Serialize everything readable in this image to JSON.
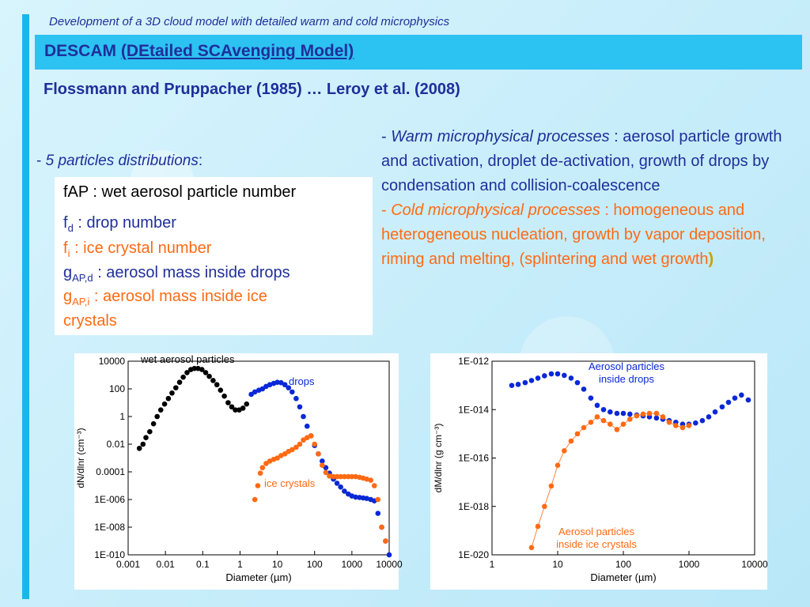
{
  "header": {
    "subtitle": "Development of a 3D cloud model with detailed warm and cold microphysics",
    "title_prefix": "DESCAM ",
    "title_link": "(DEtailed SCAvenging Model)",
    "authors": "Flossmann and Pruppacher (1985) … Leroy et al. (2008)"
  },
  "distributions": {
    "dash": "- ",
    "label": "5  particles distributions",
    "colon": ":",
    "items": [
      {
        "sym": "fAP",
        "sub": "",
        "text": " : wet aerosol particle number",
        "color": "black"
      },
      {
        "sym": "f",
        "sub": "d",
        "text": " : drop number",
        "color": "blue"
      },
      {
        "sym": "f",
        "sub": "i",
        "text": "  : ice crystal number",
        "color": "orange"
      },
      {
        "sym": "g",
        "sub": "AP,d",
        "text": " : aerosol mass inside drops",
        "color": "blue"
      },
      {
        "sym": "g",
        "sub": "AP,i",
        "text": " : aerosol mass inside ice",
        "color": "orange"
      },
      {
        "sym": "",
        "sub": "",
        "text": "crystals",
        "color": "orange"
      }
    ]
  },
  "processes": {
    "warm_dash": "- ",
    "warm_title": "Warm microphysical processes",
    "warm_text": " : aerosol particle growth and activation, droplet de-activation, growth of drops by condensation and collision-coalescence",
    "cold_dash": "- ",
    "cold_title": "Cold microphysical processes",
    "cold_text": " : homogeneous and heterogeneous nucleation, growth by vapor deposition, riming and melting, (splintering and wet growth",
    "cold_close": ")"
  },
  "colors": {
    "blue": "#1f2f9a",
    "orange": "#ff6a13",
    "black": "#000000",
    "accent": "#2cc2f2"
  },
  "chart_data": [
    {
      "type": "scatter",
      "xlabel": "Diameter (µm)",
      "ylabel": "dN/dlnr (cm⁻³)",
      "xscale": "log",
      "yscale": "log",
      "xlim": [
        0.001,
        10000
      ],
      "ylim": [
        1e-10,
        10000
      ],
      "xticks": [
        "0.001",
        "0.01",
        "0.1",
        "1",
        "10",
        "100",
        "1000",
        "10000"
      ],
      "yticks": [
        "10000",
        "100",
        "1",
        "0.01",
        "0.0001",
        "1E-006",
        "1E-008",
        "1E-010"
      ],
      "series": [
        {
          "name": "wet aerosol particles",
          "color": "#000000",
          "x": [
            0.002,
            0.0025,
            0.003,
            0.0038,
            0.0048,
            0.006,
            0.0075,
            0.0095,
            0.012,
            0.015,
            0.019,
            0.024,
            0.03,
            0.038,
            0.048,
            0.06,
            0.075,
            0.095,
            0.12,
            0.15,
            0.19,
            0.24,
            0.3,
            0.38,
            0.48,
            0.6,
            0.75,
            0.95,
            1.2,
            1.5
          ],
          "y": [
            0.005,
            0.01,
            0.03,
            0.08,
            0.3,
            1,
            3,
            8,
            20,
            50,
            120,
            300,
            700,
            1500,
            2500,
            3000,
            3000,
            2500,
            1500,
            800,
            400,
            200,
            80,
            30,
            10,
            5,
            3,
            3,
            4,
            8
          ]
        },
        {
          "name": "drops",
          "color": "#0a28d6",
          "x": [
            2,
            2.5,
            3.2,
            4,
            5,
            6.3,
            8,
            10,
            12.6,
            16,
            20,
            25,
            32,
            40,
            50,
            63,
            80,
            100,
            126,
            160,
            200,
            250,
            320,
            400,
            500,
            630,
            800,
            1000,
            1260,
            1600,
            2000,
            2500,
            3200,
            4000,
            5000,
            6300,
            8000,
            10000
          ],
          "y": [
            40,
            60,
            80,
            100,
            150,
            200,
            250,
            300,
            280,
            200,
            120,
            60,
            20,
            5,
            1,
            0.2,
            0.04,
            0.008,
            0.002,
            0.0006,
            0.0002,
            8e-05,
            3e-05,
            1.5e-05,
            8e-06,
            4e-06,
            2.5e-06,
            1.8e-06,
            1.5e-06,
            1.4e-06,
            1.3e-06,
            1.2e-06,
            1e-06,
            8e-07,
            1e-07,
            1e-08,
            1e-09,
            1e-10
          ]
        },
        {
          "name": "ice crystals",
          "color": "#ff6a13",
          "x": [
            2.5,
            3,
            3.5,
            4,
            5,
            6.3,
            8,
            10,
            12.6,
            16,
            20,
            25,
            32,
            40,
            50,
            63,
            80,
            100,
            126,
            160,
            200,
            250,
            320,
            400,
            500,
            630,
            800,
            1000,
            1260,
            1600,
            2000,
            2500,
            3200,
            4000,
            5000,
            6300,
            8000
          ],
          "y": [
            1e-06,
            1e-05,
            8e-05,
            0.0002,
            0.0004,
            0.0006,
            0.0008,
            0.001,
            0.0015,
            0.002,
            0.003,
            0.004,
            0.006,
            0.01,
            0.02,
            0.03,
            0.04,
            0.01,
            0.002,
            0.0003,
            9e-05,
            5e-05,
            4.5e-05,
            4.5e-05,
            4.5e-05,
            4.5e-05,
            4.5e-05,
            4.5e-05,
            4.5e-05,
            4e-05,
            3.5e-05,
            3e-05,
            2.5e-05,
            1e-05,
            1e-06,
            1e-08,
            1e-09
          ]
        }
      ]
    },
    {
      "type": "scatter",
      "xlabel": "Diameter (µm)",
      "ylabel": "dM/dlnr (g cm⁻³)",
      "xscale": "log",
      "yscale": "log",
      "xlim": [
        1,
        10000
      ],
      "ylim": [
        1e-20,
        1e-12
      ],
      "xticks": [
        "1",
        "10",
        "100",
        "1000",
        "10000"
      ],
      "yticks": [
        "1E-012",
        "1E-014",
        "1E-016",
        "1E-018",
        "1E-020"
      ],
      "series": [
        {
          "name": "Aerosol particles inside drops",
          "color": "#0a28d6",
          "x": [
            2,
            2.5,
            3.2,
            4,
            5,
            6.3,
            8,
            10,
            12.6,
            16,
            20,
            25,
            32,
            40,
            50,
            63,
            80,
            100,
            126,
            160,
            200,
            250,
            320,
            400,
            500,
            630,
            800,
            1000,
            1260,
            1600,
            2000,
            2500,
            3200,
            4000,
            5000,
            6300,
            8000
          ],
          "y": [
            1e-13,
            1.1e-13,
            1.3e-13,
            1.6e-13,
            2e-13,
            2.5e-13,
            3e-13,
            3e-13,
            2.6e-13,
            2e-13,
            1.3e-13,
            7e-14,
            3e-14,
            1.5e-14,
            1e-14,
            8e-15,
            7e-15,
            7e-15,
            6.5e-15,
            6e-15,
            5.5e-15,
            5e-15,
            4.5e-15,
            4e-15,
            3.5e-15,
            3e-15,
            2.5e-15,
            2.5e-15,
            2.8e-15,
            3.5e-15,
            5e-15,
            8e-15,
            1.3e-14,
            2e-14,
            3e-14,
            4e-14,
            2.5e-14
          ]
        },
        {
          "name": "Aerosol particles inside ice crystals",
          "color": "#ff6a13",
          "x": [
            4,
            5,
            6.3,
            8,
            10,
            12.6,
            16,
            20,
            25,
            32,
            40,
            50,
            63,
            80,
            100,
            126,
            160,
            200,
            250,
            320,
            400,
            500,
            630,
            800,
            1000
          ],
          "y": [
            2e-20,
            1.5e-19,
            1e-18,
            7e-18,
            5e-17,
            2e-16,
            5e-16,
            1e-15,
            1.8e-15,
            3e-15,
            5e-15,
            3.5e-15,
            2.5e-15,
            1.5e-15,
            2.5e-15,
            4e-15,
            5.5e-15,
            6.5e-15,
            7e-15,
            7e-15,
            5e-15,
            3e-15,
            2.2e-15,
            1.8e-15,
            2.2e-15
          ]
        }
      ]
    }
  ]
}
